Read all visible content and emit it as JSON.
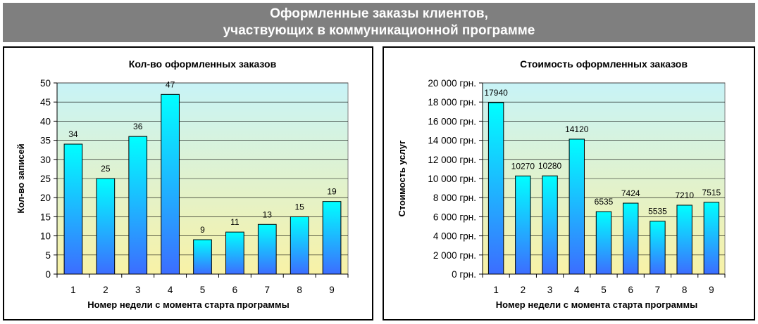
{
  "header": {
    "line1": "Оформленные заказы клиентов,",
    "line2": "участвующих в коммуникационной программе"
  },
  "colors": {
    "header_bg": "#7f7f7f",
    "plot_bg_top": "#c8f3f7",
    "plot_bg_bottom": "#f8f2a6",
    "bar_top": "#00ffff",
    "bar_bottom": "#3c6dff"
  },
  "chart_data": [
    {
      "type": "bar",
      "title": "Кол-во оформленных заказов",
      "xlabel": "Номер недели с момента старта программы",
      "ylabel": "Кол-во записей",
      "categories": [
        "1",
        "2",
        "3",
        "4",
        "5",
        "6",
        "7",
        "8",
        "9"
      ],
      "values": [
        34,
        25,
        36,
        47,
        9,
        11,
        13,
        15,
        19
      ],
      "data_labels": [
        "34",
        "25",
        "36",
        "47",
        "9",
        "11",
        "13",
        "15",
        "19"
      ],
      "ylim": [
        0,
        50
      ],
      "yticks": [
        0,
        5,
        10,
        15,
        20,
        25,
        30,
        35,
        40,
        45,
        50
      ],
      "ytick_labels": [
        "0",
        "5",
        "10",
        "15",
        "20",
        "25",
        "30",
        "35",
        "40",
        "45",
        "50"
      ],
      "grid": true,
      "legend": false
    },
    {
      "type": "bar",
      "title": "Стоимость оформленных заказов",
      "xlabel": "Номер недели с момента старта программы",
      "ylabel": "Стоимость услуг",
      "categories": [
        "1",
        "2",
        "3",
        "4",
        "5",
        "6",
        "7",
        "8",
        "9"
      ],
      "values": [
        17940,
        10270,
        10280,
        14120,
        6535,
        7424,
        5535,
        7210,
        7515
      ],
      "data_labels": [
        "17940",
        "10270",
        "10280",
        "14120",
        "6535",
        "7424",
        "5535",
        "7210",
        "7515"
      ],
      "ylim": [
        0,
        20000
      ],
      "yticks": [
        0,
        2000,
        4000,
        6000,
        8000,
        10000,
        12000,
        14000,
        16000,
        18000,
        20000
      ],
      "ytick_labels": [
        "0 грн.",
        "2 000 грн.",
        "4 000 грн.",
        "6 000 грн.",
        "8 000 грн.",
        "10 000 грн.",
        "12 000 грн.",
        "14 000 грн.",
        "16 000 грн.",
        "18 000 грн.",
        "20 000 грн."
      ],
      "grid": true,
      "legend": false
    }
  ]
}
